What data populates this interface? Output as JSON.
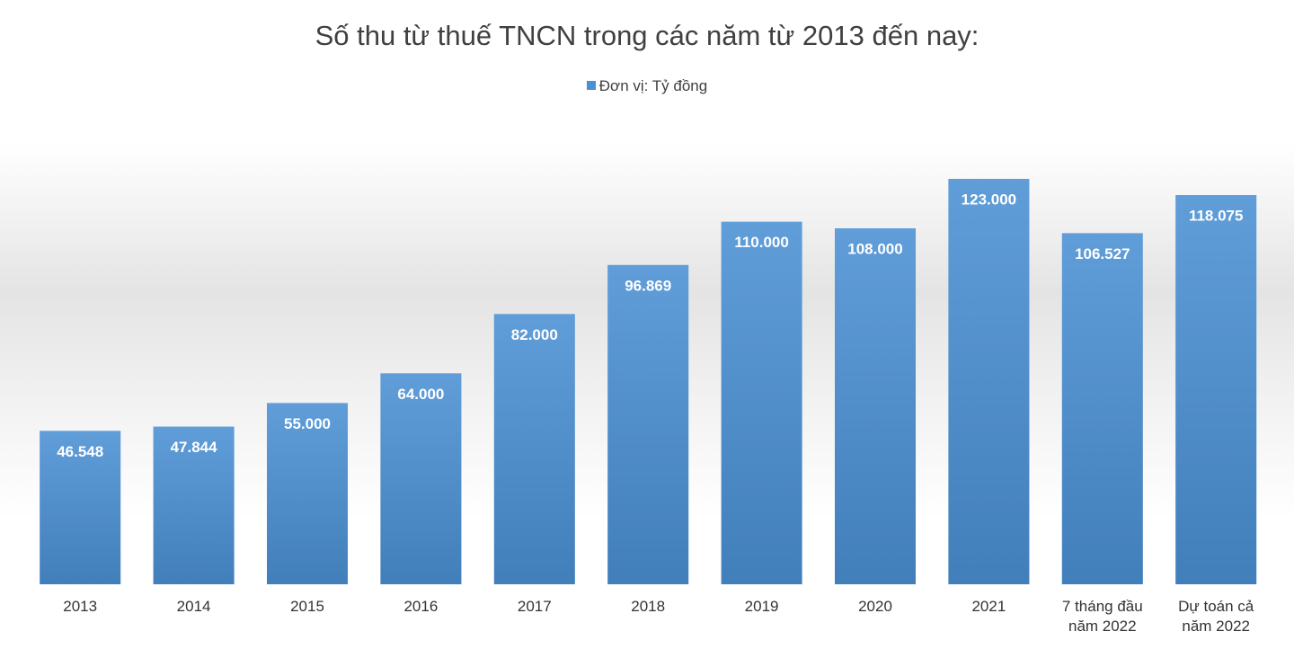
{
  "chart_data": {
    "type": "bar",
    "title": "Số thu từ thuế TNCN trong các năm từ 2013 đến nay:",
    "categories": [
      "2013",
      "2014",
      "2015",
      "2016",
      "2017",
      "2018",
      "2019",
      "2020",
      "2021",
      "7 tháng đầu năm 2022",
      "Dự toán cả năm 2022"
    ],
    "series": [
      {
        "name": "Đơn vị: Tỷ đồng",
        "color": "#4a90d4",
        "values": [
          46548,
          47844,
          55000,
          64000,
          82000,
          96869,
          110000,
          108000,
          123000,
          106527,
          118075
        ],
        "value_labels": [
          "46.548",
          "47.844",
          "55.000",
          "64.000",
          "82.000",
          "96.869",
          "110.000",
          "108.000",
          "123.000",
          "106.527",
          "118.075"
        ]
      }
    ],
    "legend": "top"
  }
}
